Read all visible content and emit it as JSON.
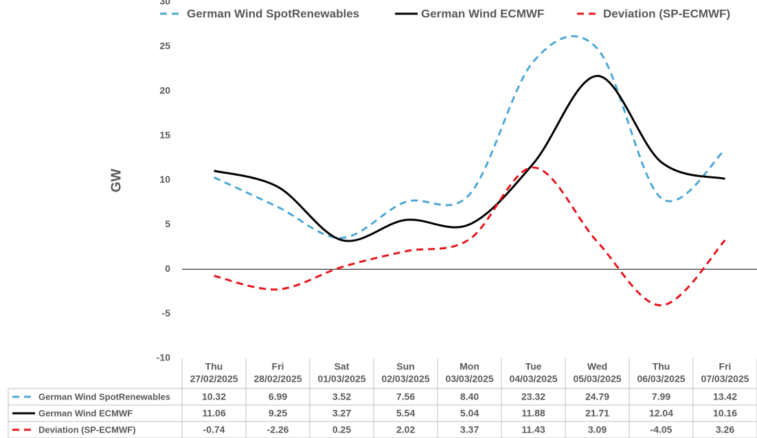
{
  "chart_data": {
    "type": "line",
    "y_axis_label": "GW",
    "category_days": [
      "Thu",
      "Fri",
      "Sat",
      "Sun",
      "Mon",
      "Tue",
      "Wed",
      "Thu",
      "Fri"
    ],
    "categories": [
      "27/02/2025",
      "28/02/2025",
      "01/03/2025",
      "02/03/2025",
      "03/03/2025",
      "04/03/2025",
      "05/03/2025",
      "06/03/2025",
      "07/03/2025"
    ],
    "ylim": [
      -10,
      30
    ],
    "yticks": [
      -10,
      -5,
      0,
      5,
      10,
      15,
      20,
      25,
      30
    ],
    "series": [
      {
        "name": "German Wind SpotRenewables",
        "color": "#4ea7d6",
        "dashed": true,
        "values": [
          10.32,
          6.99,
          3.52,
          7.56,
          8.4,
          23.32,
          24.79,
          7.99,
          13.42
        ],
        "value_labels": [
          "10.32",
          "6.99",
          "3.52",
          "7.56",
          "8.40",
          "23.32",
          "24.79",
          "7.99",
          "13.42"
        ]
      },
      {
        "name": "German Wind ECMWF",
        "color": "#000000",
        "dashed": false,
        "values": [
          11.06,
          9.25,
          3.27,
          5.54,
          5.04,
          11.88,
          21.71,
          12.04,
          10.16
        ],
        "value_labels": [
          "11.06",
          "9.25",
          "3.27",
          "5.54",
          "5.04",
          "11.88",
          "21.71",
          "12.04",
          "10.16"
        ]
      },
      {
        "name": "Deviation (SP-ECMWF)",
        "color": "#e8141c",
        "dashed": true,
        "values": [
          -0.74,
          -2.26,
          0.25,
          2.02,
          3.37,
          11.43,
          3.09,
          -4.05,
          3.26
        ],
        "value_labels": [
          "-0.74",
          "-2.26",
          "0.25",
          "2.02",
          "3.37",
          "11.43",
          "3.09",
          "-4.05",
          "3.26"
        ]
      }
    ]
  }
}
